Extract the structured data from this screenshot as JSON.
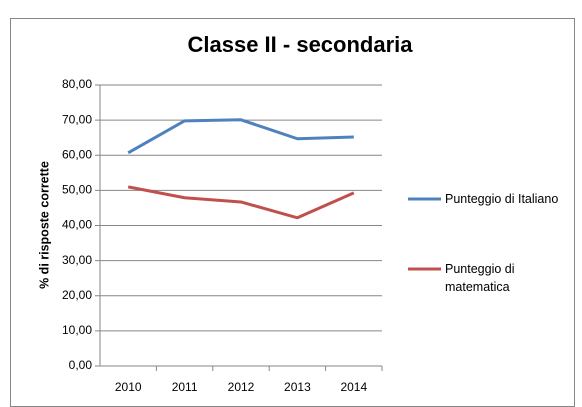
{
  "chart_data": {
    "type": "line",
    "title": "Classe II - secondaria",
    "y_label": "% di risposte corrette",
    "categories": [
      "2010",
      "2011",
      "2012",
      "2013",
      "2014"
    ],
    "series": [
      {
        "name": "Punteggio di Italiano",
        "color": "#4f81bd",
        "values": [
          60.7,
          69.8,
          70.1,
          64.7,
          65.2
        ]
      },
      {
        "name": "Punteggio di matematica",
        "color": "#c0504d",
        "values": [
          51.0,
          47.9,
          46.7,
          42.2,
          49.3
        ]
      }
    ],
    "ylim": [
      0,
      80
    ],
    "yticks": [
      {
        "value": 0,
        "label": "0,00"
      },
      {
        "value": 10,
        "label": "10,00"
      },
      {
        "value": 20,
        "label": "20,00"
      },
      {
        "value": 30,
        "label": "30,00"
      },
      {
        "value": 40,
        "label": "40,00"
      },
      {
        "value": 50,
        "label": "50,00"
      },
      {
        "value": 60,
        "label": "60,00"
      },
      {
        "value": 70,
        "label": "70,00"
      },
      {
        "value": 80,
        "label": "80,00"
      }
    ],
    "grid": true,
    "legend": "right"
  }
}
